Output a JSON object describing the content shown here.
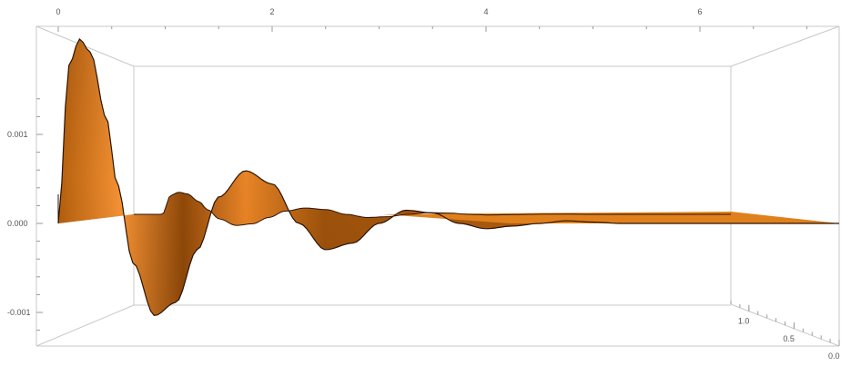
{
  "chart_data": {
    "type": "surface3d",
    "title": "",
    "xlabel": "",
    "ylabel": "",
    "zlabel": "",
    "x_range": [
      0,
      7.3
    ],
    "y_range": [
      0,
      1.2
    ],
    "z_range": [
      -0.0012,
      0.0016
    ],
    "x_ticks": [
      {
        "value": 0,
        "label": "0"
      },
      {
        "value": 2,
        "label": "2"
      },
      {
        "value": 4,
        "label": "4"
      },
      {
        "value": 6,
        "label": "6"
      }
    ],
    "z_ticks": [
      {
        "value": 0.001,
        "label": "0.001"
      },
      {
        "value": 0.0,
        "label": "0.000"
      },
      {
        "value": -0.001,
        "label": "-0.001"
      }
    ],
    "y_ticks": [
      {
        "value": 1.0,
        "label": "1.0"
      },
      {
        "value": 0.5,
        "label": "0.5"
      },
      {
        "value": 0.0,
        "label": "0.0"
      }
    ],
    "front_edge_profile": {
      "x": [
        0.0,
        0.1,
        0.2,
        0.3,
        0.45,
        0.55,
        0.7,
        0.9,
        1.1,
        1.3,
        1.5,
        1.75,
        2.0,
        2.25,
        2.5,
        2.75,
        3.0,
        3.25,
        3.5,
        3.75,
        4.0,
        4.25,
        4.5,
        4.75,
        5.0,
        5.25,
        5.5,
        6.0,
        6.5,
        7.0,
        7.3
      ],
      "z": [
        0.0,
        0.0012,
        0.0014,
        0.0013,
        0.0008,
        0.0003,
        -0.0003,
        -0.0007,
        -0.0006,
        -0.0002,
        0.0002,
        0.0004,
        0.0003,
        0.0,
        -0.0002,
        -0.00015,
        0.0,
        0.0001,
        8e-05,
        0.0,
        -4e-05,
        -2e-05,
        0.0,
        2e-05,
        1e-05,
        0.0,
        0.0,
        0.0,
        0.0,
        0.0,
        0.0
      ]
    },
    "colors": {
      "surface": "#e0801c",
      "surface_dark": "#6f3a08",
      "surface_light": "#ffae5a",
      "edge": "#2a1404",
      "box": "#c8c8c8"
    },
    "grid": false,
    "legend": "none"
  }
}
